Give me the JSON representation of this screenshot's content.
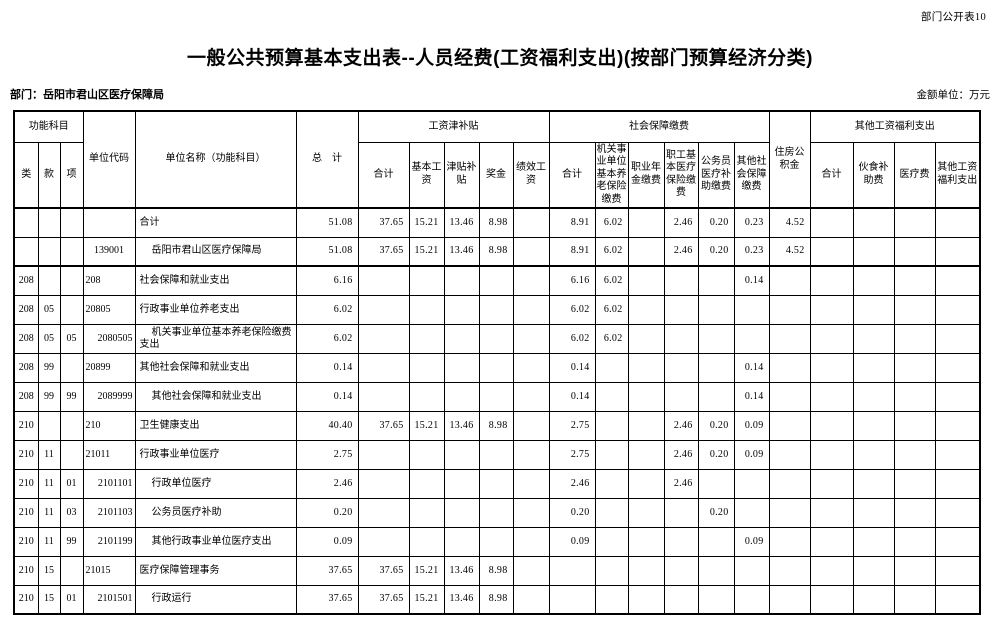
{
  "page": {
    "doc_label": "部门公开表10",
    "title": "一般公共预算基本支出表--人员经费(工资福利支出)(按部门预算经济分类)",
    "department": "部门：岳阳市君山区医疗保障局",
    "amount_unit": "金额单位：万元"
  },
  "table": {
    "header": {
      "func_group": "功能科目",
      "func_cols": [
        "类",
        "款",
        "项"
      ],
      "unit_code": "单位代码",
      "unit_name": "单位名称（功能科目）",
      "total": "总　计",
      "salary_group": "工资津补贴",
      "salary_cols": [
        "合计",
        "基本工资",
        "津贴补贴",
        "奖金",
        "绩效工资"
      ],
      "social_group": "社会保障缴费",
      "social_cols": [
        "合计",
        "机关事业单位基本养老保险缴费",
        "职业年金缴费",
        "职工基本医疗保险缴费",
        "公务员医疗补助缴费",
        "其他社会保障缴费"
      ],
      "housing": "住房公积金",
      "other_group": "其他工资福利支出",
      "other_cols": [
        "合计",
        "伙食补助费",
        "医疗费",
        "其他工资福利支出"
      ]
    },
    "rows": [
      {
        "lei": "",
        "kuan": "",
        "xiang": "",
        "code": "",
        "name": "合计",
        "indent": 0,
        "values": [
          "51.08",
          "37.65",
          "15.21",
          "13.46",
          "8.98",
          "",
          "8.91",
          "6.02",
          "",
          "2.46",
          "0.20",
          "0.23",
          "4.52",
          "",
          "",
          "",
          ""
        ]
      },
      {
        "lei": "",
        "kuan": "",
        "xiang": "",
        "code": "139001",
        "name": "岳阳市君山区医疗保障局",
        "indent": 1,
        "values": [
          "51.08",
          "37.65",
          "15.21",
          "13.46",
          "8.98",
          "",
          "8.91",
          "6.02",
          "",
          "2.46",
          "0.20",
          "0.23",
          "4.52",
          "",
          "",
          "",
          ""
        ]
      },
      {
        "lei": "208",
        "kuan": "",
        "xiang": "",
        "code": "208",
        "name": "社会保障和就业支出",
        "indent": 0,
        "values": [
          "6.16",
          "",
          "",
          "",
          "",
          "",
          "6.16",
          "6.02",
          "",
          "",
          "",
          "0.14",
          "",
          "",
          "",
          "",
          ""
        ]
      },
      {
        "lei": "208",
        "kuan": "05",
        "xiang": "",
        "code": "20805",
        "name": "行政事业单位养老支出",
        "indent": 0,
        "values": [
          "6.02",
          "",
          "",
          "",
          "",
          "",
          "6.02",
          "6.02",
          "",
          "",
          "",
          "",
          "",
          "",
          "",
          "",
          ""
        ]
      },
      {
        "lei": "208",
        "kuan": "05",
        "xiang": "05",
        "code": "2080505",
        "name": "机关事业单位基本养老保险缴费支出",
        "indent": 1,
        "values": [
          "6.02",
          "",
          "",
          "",
          "",
          "",
          "6.02",
          "6.02",
          "",
          "",
          "",
          "",
          "",
          "",
          "",
          "",
          ""
        ]
      },
      {
        "lei": "208",
        "kuan": "99",
        "xiang": "",
        "code": "20899",
        "name": "其他社会保障和就业支出",
        "indent": 0,
        "values": [
          "0.14",
          "",
          "",
          "",
          "",
          "",
          "0.14",
          "",
          "",
          "",
          "",
          "0.14",
          "",
          "",
          "",
          "",
          ""
        ]
      },
      {
        "lei": "208",
        "kuan": "99",
        "xiang": "99",
        "code": "2089999",
        "name": "其他社会保障和就业支出",
        "indent": 1,
        "values": [
          "0.14",
          "",
          "",
          "",
          "",
          "",
          "0.14",
          "",
          "",
          "",
          "",
          "0.14",
          "",
          "",
          "",
          "",
          ""
        ]
      },
      {
        "lei": "210",
        "kuan": "",
        "xiang": "",
        "code": "210",
        "name": "卫生健康支出",
        "indent": 0,
        "values": [
          "40.40",
          "37.65",
          "15.21",
          "13.46",
          "8.98",
          "",
          "2.75",
          "",
          "",
          "2.46",
          "0.20",
          "0.09",
          "",
          "",
          "",
          "",
          ""
        ]
      },
      {
        "lei": "210",
        "kuan": "11",
        "xiang": "",
        "code": "21011",
        "name": "行政事业单位医疗",
        "indent": 0,
        "values": [
          "2.75",
          "",
          "",
          "",
          "",
          "",
          "2.75",
          "",
          "",
          "2.46",
          "0.20",
          "0.09",
          "",
          "",
          "",
          "",
          ""
        ]
      },
      {
        "lei": "210",
        "kuan": "11",
        "xiang": "01",
        "code": "2101101",
        "name": "行政单位医疗",
        "indent": 1,
        "values": [
          "2.46",
          "",
          "",
          "",
          "",
          "",
          "2.46",
          "",
          "",
          "2.46",
          "",
          "",
          "",
          "",
          "",
          "",
          ""
        ]
      },
      {
        "lei": "210",
        "kuan": "11",
        "xiang": "03",
        "code": "2101103",
        "name": "公务员医疗补助",
        "indent": 1,
        "values": [
          "0.20",
          "",
          "",
          "",
          "",
          "",
          "0.20",
          "",
          "",
          "",
          "0.20",
          "",
          "",
          "",
          "",
          "",
          ""
        ]
      },
      {
        "lei": "210",
        "kuan": "11",
        "xiang": "99",
        "code": "2101199",
        "name": "其他行政事业单位医疗支出",
        "indent": 1,
        "values": [
          "0.09",
          "",
          "",
          "",
          "",
          "",
          "0.09",
          "",
          "",
          "",
          "",
          "0.09",
          "",
          "",
          "",
          "",
          ""
        ]
      },
      {
        "lei": "210",
        "kuan": "15",
        "xiang": "",
        "code": "21015",
        "name": "医疗保障管理事务",
        "indent": 0,
        "values": [
          "37.65",
          "37.65",
          "15.21",
          "13.46",
          "8.98",
          "",
          "",
          "",
          "",
          "",
          "",
          "",
          "",
          "",
          "",
          "",
          ""
        ]
      },
      {
        "lei": "210",
        "kuan": "15",
        "xiang": "01",
        "code": "2101501",
        "name": "行政运行",
        "indent": 1,
        "values": [
          "37.65",
          "37.65",
          "15.21",
          "13.46",
          "8.98",
          "",
          "",
          "",
          "",
          "",
          "",
          "",
          "",
          "",
          "",
          "",
          ""
        ]
      }
    ]
  }
}
